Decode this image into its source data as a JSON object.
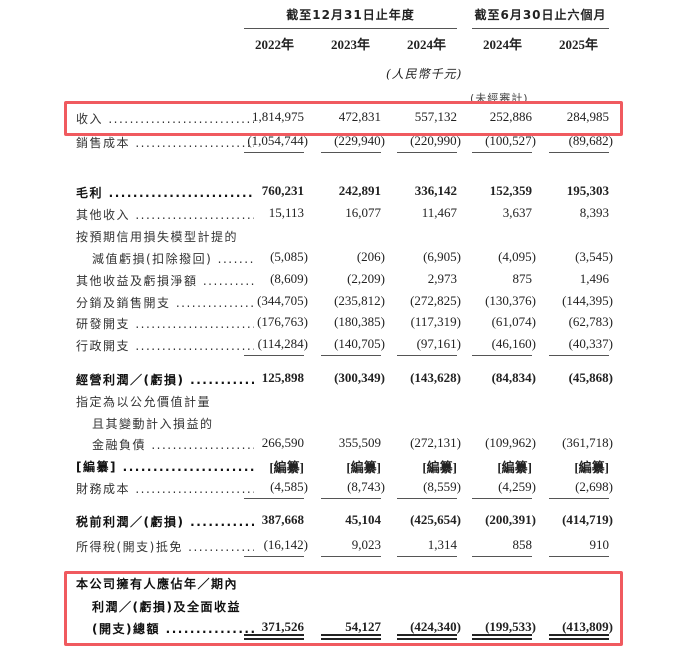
{
  "header": {
    "group_annual": "截至12月31日止年度",
    "group_interim": "截至6月30日止六個月",
    "years": [
      "2022年",
      "2023年",
      "2024年",
      "2024年",
      "2025年"
    ],
    "currency_note": "(人民幣千元)",
    "unaudited_note": "(未經審計)"
  },
  "highlight_color": "#f05a5f",
  "rows": [
    {
      "label": "收入",
      "values": [
        "1,814,975",
        "472,831",
        "557,132",
        "252,886",
        "284,985"
      ],
      "bold": false
    },
    {
      "label": "銷售成本",
      "values": [
        "(1,054,744)",
        "(229,940)",
        "(220,990)",
        "(100,527)",
        "(89,682)"
      ],
      "bold": false
    },
    {
      "label": "毛利",
      "values": [
        "760,231",
        "242,891",
        "336,142",
        "152,359",
        "195,303"
      ],
      "bold": true
    },
    {
      "label": "其他收入",
      "values": [
        "15,113",
        "16,077",
        "11,467",
        "3,637",
        "8,393"
      ],
      "bold": false
    },
    {
      "label": "按預期信用損失模型計提的",
      "values": [],
      "bold": false
    },
    {
      "label": "減值虧損(扣除撥回)",
      "values": [
        "(5,085)",
        "(206)",
        "(6,905)",
        "(4,095)",
        "(3,545)"
      ],
      "bold": false,
      "indent": true
    },
    {
      "label": "其他收益及虧損淨額",
      "values": [
        "(8,609)",
        "(2,209)",
        "2,973",
        "875",
        "1,496"
      ],
      "bold": false
    },
    {
      "label": "分銷及銷售開支",
      "values": [
        "(344,705)",
        "(235,812)",
        "(272,825)",
        "(130,376)",
        "(144,395)"
      ],
      "bold": false
    },
    {
      "label": "研發開支",
      "values": [
        "(176,763)",
        "(180,385)",
        "(117,319)",
        "(61,074)",
        "(62,783)"
      ],
      "bold": false
    },
    {
      "label": "行政開支",
      "values": [
        "(114,284)",
        "(140,705)",
        "(97,161)",
        "(46,160)",
        "(40,337)"
      ],
      "bold": false
    },
    {
      "label": "經營利潤／(虧損)",
      "values": [
        "125,898",
        "(300,349)",
        "(143,628)",
        "(84,834)",
        "(45,868)"
      ],
      "bold": true
    },
    {
      "label": "指定為以公允價值計量",
      "values": [],
      "bold": false
    },
    {
      "label": "且其變動計入損益的",
      "values": [],
      "bold": false,
      "indent": true
    },
    {
      "label": "金融負債",
      "values": [
        "266,590",
        "355,509",
        "(272,131)",
        "(109,962)",
        "(361,718)"
      ],
      "bold": false,
      "indent": true
    },
    {
      "label": "[編纂]",
      "values": [
        "[編纂]",
        "[編纂]",
        "[編纂]",
        "[編纂]",
        "[編纂]"
      ],
      "bold": true
    },
    {
      "label": "財務成本",
      "values": [
        "(4,585)",
        "(8,743)",
        "(8,559)",
        "(4,259)",
        "(2,698)"
      ],
      "bold": false
    },
    {
      "label": "税前利潤／(虧損)",
      "values": [
        "387,668",
        "45,104",
        "(425,654)",
        "(200,391)",
        "(414,719)"
      ],
      "bold": true
    },
    {
      "label": "所得稅(開支)抵免",
      "values": [
        "(16,142)",
        "9,023",
        "1,314",
        "858",
        "910"
      ],
      "bold": false
    },
    {
      "label": "本公司擁有人應佔年／期內",
      "values": [],
      "bold": true
    },
    {
      "label": "利潤／(虧損)及全面收益",
      "values": [],
      "bold": true,
      "indent": true
    },
    {
      "label": "(開支)總額",
      "values": [
        "371,526",
        "54,127",
        "(424,340)",
        "(199,533)",
        "(413,809)"
      ],
      "bold": true,
      "indent": true
    }
  ]
}
